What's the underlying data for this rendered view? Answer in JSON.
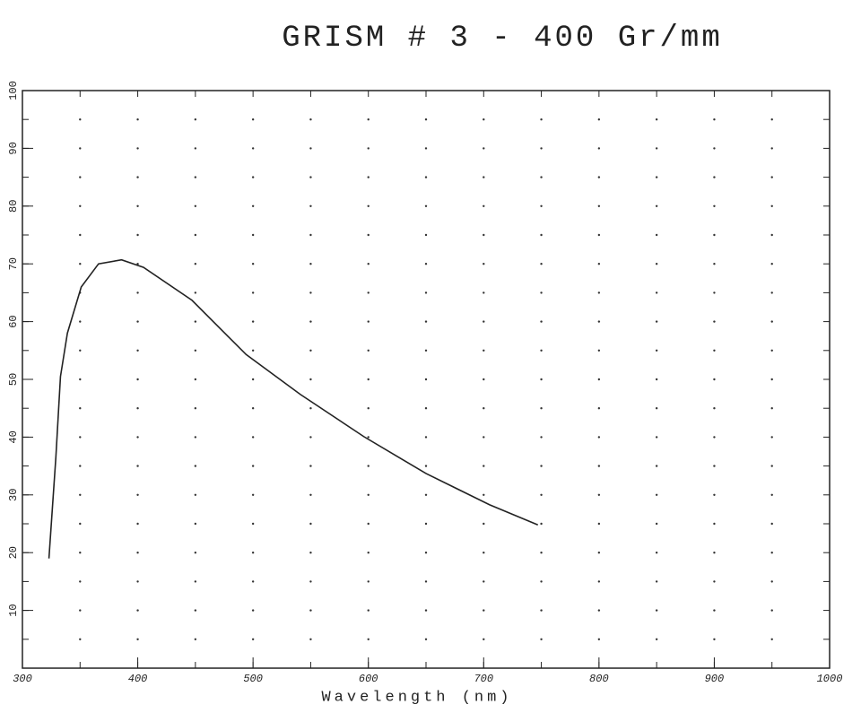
{
  "chart_data": {
    "type": "line",
    "title": "GRISM # 3  -  400 Gr/mm",
    "x_label": "Wavelength (nm)",
    "x": [
      323,
      329,
      333,
      339,
      351,
      366,
      386,
      405,
      447,
      494,
      541,
      596,
      650,
      705,
      747
    ],
    "series": [
      {
        "color": "#222222",
        "values": [
          19,
          36.5,
          50.5,
          58,
          66,
          70,
          70.7,
          69.4,
          63.7,
          54.3,
          47.4,
          40.1,
          33.7,
          28.3,
          24.8
        ]
      }
    ],
    "xlim": [
      300,
      1000
    ],
    "xticks": [
      300,
      400,
      500,
      600,
      700,
      800,
      900,
      1000
    ],
    "ylim": [
      0,
      100
    ],
    "yticks": [
      10,
      20,
      30,
      40,
      50,
      60,
      70,
      80,
      90,
      100
    ],
    "grid": true
  }
}
